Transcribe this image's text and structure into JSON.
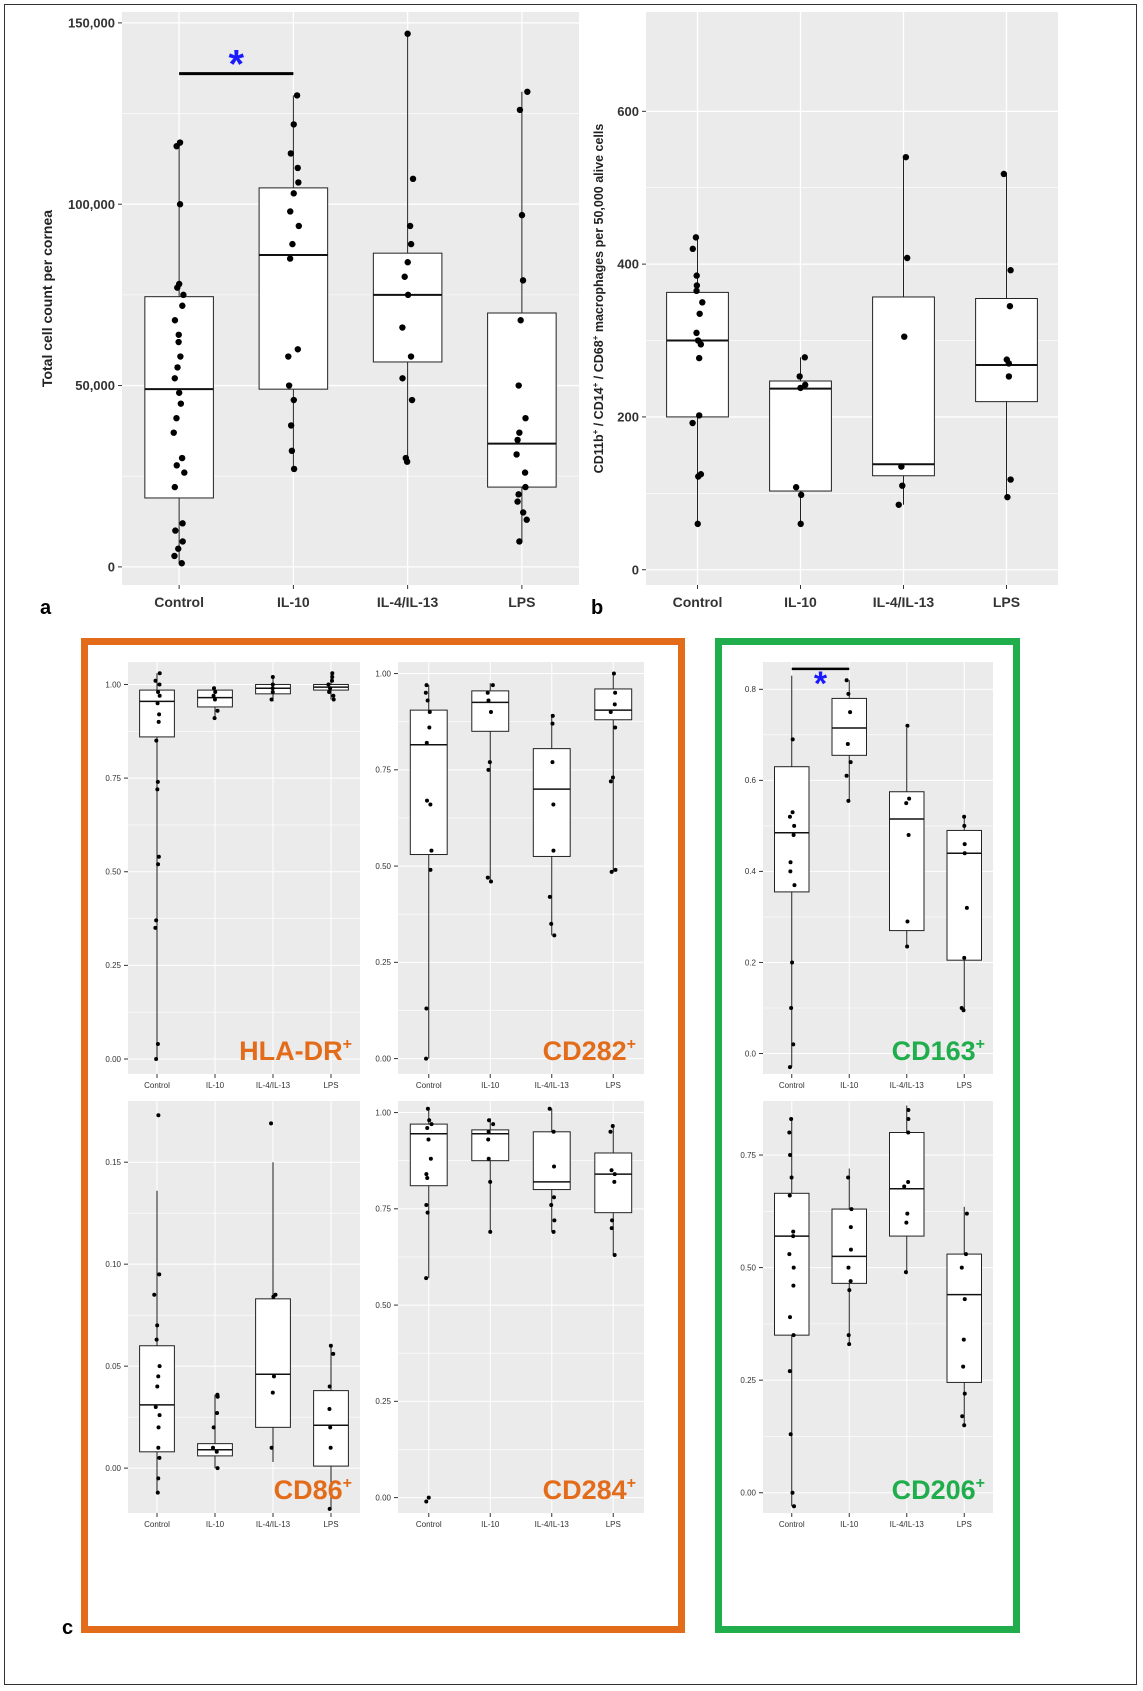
{
  "colors": {
    "panel_bg": "#ebebeb",
    "grid": "#ffffff",
    "orange": "#e36c1b",
    "green": "#1fae4b",
    "asterisk": "#1a1aff",
    "text": "#333333"
  },
  "panel_letters": {
    "a": "a",
    "b": "b",
    "c": "c"
  },
  "chart_data": [
    {
      "id": "a",
      "type": "box",
      "categories": [
        "Control",
        "IL-10",
        "IL-4/IL-13",
        "LPS"
      ],
      "ylabel": "Total cell count per cornea",
      "ylim": [
        -5000,
        153000
      ],
      "yticks": [
        0,
        50000,
        100000,
        150000
      ],
      "ytick_labels": [
        "0",
        "50,000",
        "100,000",
        "150,000"
      ],
      "boxes": [
        {
          "min": 1000,
          "q1": 19000,
          "median": 49000,
          "q3": 74500,
          "max": 117000
        },
        {
          "min": 27000,
          "q1": 49000,
          "median": 86000,
          "q3": 104500,
          "max": 130000
        },
        {
          "min": 29000,
          "q1": 56500,
          "median": 75000,
          "q3": 86500,
          "max": 147000
        },
        {
          "min": 7000,
          "q1": 22000,
          "median": 34000,
          "q3": 70000,
          "max": 131000
        }
      ],
      "points": [
        [
          1000,
          3000,
          5000,
          7000,
          10000,
          12000,
          22000,
          26000,
          28000,
          30000,
          37000,
          41000,
          45000,
          48000,
          52000,
          55000,
          58000,
          62000,
          64000,
          68000,
          72000,
          75000,
          77000,
          78000,
          100000,
          116000,
          117000
        ],
        [
          27000,
          32000,
          39000,
          46000,
          50000,
          58000,
          60000,
          85000,
          89000,
          94000,
          98000,
          103000,
          106000,
          110000,
          114000,
          122000,
          130000
        ],
        [
          29000,
          30000,
          46000,
          52000,
          58000,
          66000,
          75000,
          80000,
          84000,
          89000,
          94000,
          107000,
          147000
        ],
        [
          7000,
          13000,
          15000,
          18000,
          20000,
          22000,
          26000,
          31000,
          35000,
          37000,
          41000,
          50000,
          68000,
          79000,
          97000,
          126000,
          131000
        ]
      ],
      "significance": {
        "between": [
          0,
          1
        ],
        "y": 136000,
        "label": "*"
      }
    },
    {
      "id": "b",
      "type": "box",
      "categories": [
        "Control",
        "IL-10",
        "IL-4/IL-13",
        "LPS"
      ],
      "ylabel_parts": [
        "CD11b",
        "+",
        " / CD14",
        "+",
        " / CD68",
        "+",
        " macrophages per 50,000 alive cells"
      ],
      "ylim": [
        -20,
        730
      ],
      "yticks": [
        0,
        200,
        400,
        600
      ],
      "ytick_labels": [
        "0",
        "200",
        "400",
        "600"
      ],
      "boxes": [
        {
          "min": 60,
          "q1": 200,
          "median": 300,
          "q3": 363,
          "max": 435
        },
        {
          "min": 60,
          "q1": 103,
          "median": 237,
          "q3": 247,
          "max": 278
        },
        {
          "min": 85,
          "q1": 123,
          "median": 138,
          "q3": 357,
          "max": 540
        },
        {
          "min": 95,
          "q1": 220,
          "median": 268,
          "q3": 355,
          "max": 518
        }
      ],
      "points": [
        [
          60,
          122,
          125,
          192,
          202,
          277,
          295,
          300,
          310,
          335,
          350,
          365,
          372,
          385,
          420,
          435
        ],
        [
          60,
          98,
          108,
          238,
          242,
          253,
          278
        ],
        [
          85,
          110,
          135,
          305,
          408,
          540
        ],
        [
          95,
          118,
          253,
          270,
          275,
          345,
          392,
          518
        ]
      ]
    },
    {
      "id": "hla",
      "type": "box",
      "categories": [
        "Control",
        "IL-10",
        "IL-4/IL-13",
        "LPS"
      ],
      "label": "HLA-DR",
      "label_sup": "+",
      "label_color": "orange",
      "ylim": [
        -0.04,
        1.06
      ],
      "yticks": [
        0,
        0.25,
        0.5,
        0.75,
        1.0
      ],
      "ytick_labels": [
        "0.00",
        "0.25",
        "0.50",
        "0.75",
        "1.00"
      ],
      "boxes": [
        {
          "min": 0.0,
          "q1": 0.86,
          "median": 0.955,
          "q3": 0.985,
          "max": 1.03
        },
        {
          "min": 0.91,
          "q1": 0.94,
          "median": 0.965,
          "q3": 0.985,
          "max": 0.995
        },
        {
          "min": 0.955,
          "q1": 0.975,
          "median": 0.99,
          "q3": 1.0,
          "max": 1.02
        },
        {
          "min": 0.96,
          "q1": 0.985,
          "median": 0.993,
          "q3": 1.0,
          "max": 1.03
        }
      ],
      "points": [
        [
          0.0,
          0.04,
          0.35,
          0.37,
          0.52,
          0.54,
          0.72,
          0.74,
          0.85,
          0.9,
          0.92,
          0.95,
          0.97,
          0.98,
          1.0,
          1.01,
          1.03
        ],
        [
          0.91,
          0.93,
          0.96,
          0.97,
          0.98,
          0.99
        ],
        [
          0.96,
          0.98,
          0.99,
          1.0,
          1.02
        ],
        [
          0.96,
          0.97,
          0.98,
          0.99,
          1.0,
          1.01,
          1.02,
          1.03
        ]
      ]
    },
    {
      "id": "cd282",
      "type": "box",
      "categories": [
        "Control",
        "IL-10",
        "IL-4/IL-13",
        "LPS"
      ],
      "label": "CD282",
      "label_sup": "+",
      "label_color": "orange",
      "ylim": [
        -0.04,
        1.03
      ],
      "yticks": [
        0,
        0.25,
        0.5,
        0.75,
        1.0
      ],
      "ytick_labels": [
        "0.00",
        "0.25",
        "0.50",
        "0.75",
        "1.00"
      ],
      "boxes": [
        {
          "min": 0.0,
          "q1": 0.53,
          "median": 0.815,
          "q3": 0.905,
          "max": 0.97
        },
        {
          "min": 0.46,
          "q1": 0.85,
          "median": 0.925,
          "q3": 0.955,
          "max": 0.975
        },
        {
          "min": 0.32,
          "q1": 0.525,
          "median": 0.7,
          "q3": 0.805,
          "max": 0.895
        },
        {
          "min": 0.485,
          "q1": 0.88,
          "median": 0.905,
          "q3": 0.96,
          "max": 1.0
        }
      ],
      "points": [
        [
          0.0,
          0.13,
          0.49,
          0.54,
          0.66,
          0.67,
          0.82,
          0.86,
          0.9,
          0.93,
          0.95,
          0.97
        ],
        [
          0.46,
          0.47,
          0.75,
          0.77,
          0.9,
          0.93,
          0.95,
          0.97
        ],
        [
          0.32,
          0.35,
          0.42,
          0.54,
          0.66,
          0.77,
          0.87,
          0.89
        ],
        [
          0.485,
          0.49,
          0.72,
          0.73,
          0.86,
          0.9,
          0.92,
          0.95,
          1.0
        ]
      ]
    },
    {
      "id": "cd163",
      "type": "box",
      "categories": [
        "Control",
        "IL-10",
        "IL-4/IL-13",
        "LPS"
      ],
      "label": "CD163",
      "label_sup": "+",
      "label_color": "green",
      "ylim": [
        -0.045,
        0.86
      ],
      "yticks": [
        0,
        0.2,
        0.4,
        0.6,
        0.8
      ],
      "ytick_labels": [
        "0.0",
        "0.2",
        "0.4",
        "0.6",
        "0.8"
      ],
      "boxes": [
        {
          "min": -0.03,
          "q1": 0.355,
          "median": 0.485,
          "q3": 0.63,
          "max": 0.83
        },
        {
          "min": 0.555,
          "q1": 0.655,
          "median": 0.715,
          "q3": 0.78,
          "max": 0.82
        },
        {
          "min": 0.235,
          "q1": 0.27,
          "median": 0.515,
          "q3": 0.575,
          "max": 0.715
        },
        {
          "min": 0.095,
          "q1": 0.205,
          "median": 0.44,
          "q3": 0.49,
          "max": 0.52
        }
      ],
      "points": [
        [
          -0.03,
          0.02,
          0.1,
          0.2,
          0.37,
          0.4,
          0.42,
          0.48,
          0.5,
          0.52,
          0.53,
          0.69
        ],
        [
          0.555,
          0.61,
          0.64,
          0.68,
          0.75,
          0.79,
          0.82
        ],
        [
          0.235,
          0.29,
          0.48,
          0.55,
          0.56,
          0.72
        ],
        [
          0.095,
          0.1,
          0.21,
          0.32,
          0.44,
          0.46,
          0.5,
          0.52
        ]
      ],
      "significance": {
        "between": [
          0,
          1
        ],
        "y": 0.845,
        "label": "*"
      }
    },
    {
      "id": "cd86",
      "type": "box",
      "categories": [
        "Control",
        "IL-10",
        "IL-4/IL-13",
        "LPS"
      ],
      "label": "CD86",
      "label_sup": "+",
      "label_color": "orange",
      "ylim": [
        -0.022,
        0.18
      ],
      "yticks": [
        0,
        0.05,
        0.1,
        0.15
      ],
      "ytick_labels": [
        "0.00",
        "0.05",
        "0.10",
        "0.15"
      ],
      "boxes": [
        {
          "min": -0.012,
          "q1": 0.008,
          "median": 0.031,
          "q3": 0.06,
          "max": 0.136
        },
        {
          "min": 0.0,
          "q1": 0.006,
          "median": 0.009,
          "q3": 0.012,
          "max": 0.036
        },
        {
          "min": 0.003,
          "q1": 0.02,
          "median": 0.046,
          "q3": 0.083,
          "max": 0.15
        },
        {
          "min": -0.02,
          "q1": 0.001,
          "median": 0.021,
          "q3": 0.038,
          "max": 0.06
        }
      ],
      "points": [
        [
          -0.012,
          -0.005,
          0.005,
          0.01,
          0.02,
          0.026,
          0.03,
          0.04,
          0.045,
          0.05,
          0.063,
          0.07,
          0.085,
          0.095,
          0.173
        ],
        [
          0.0,
          0.008,
          0.01,
          0.02,
          0.027,
          0.035,
          0.036
        ],
        [
          0.01,
          0.037,
          0.045,
          0.084,
          0.085,
          0.169
        ],
        [
          -0.02,
          0.01,
          0.02,
          0.029,
          0.04,
          0.056,
          0.06
        ]
      ]
    },
    {
      "id": "cd284",
      "type": "box",
      "categories": [
        "Control",
        "IL-10",
        "IL-4/IL-13",
        "LPS"
      ],
      "label": "CD284",
      "label_sup": "+",
      "label_color": "orange",
      "ylim": [
        -0.04,
        1.03
      ],
      "yticks": [
        0,
        0.25,
        0.5,
        0.75,
        1.0
      ],
      "ytick_labels": [
        "0.00",
        "0.25",
        "0.50",
        "0.75",
        "1.00"
      ],
      "boxes": [
        {
          "min": 0.57,
          "q1": 0.81,
          "median": 0.945,
          "q3": 0.97,
          "max": 1.01
        },
        {
          "min": 0.69,
          "q1": 0.875,
          "median": 0.945,
          "q3": 0.955,
          "max": 0.985
        },
        {
          "min": 0.69,
          "q1": 0.8,
          "median": 0.82,
          "q3": 0.95,
          "max": 1.01
        },
        {
          "min": 0.63,
          "q1": 0.74,
          "median": 0.84,
          "q3": 0.895,
          "max": 0.965
        }
      ],
      "points": [
        [
          -0.01,
          0.0,
          0.57,
          0.74,
          0.76,
          0.83,
          0.84,
          0.88,
          0.93,
          0.96,
          0.97,
          0.98,
          1.01
        ],
        [
          0.69,
          0.82,
          0.88,
          0.93,
          0.95,
          0.97,
          0.98
        ],
        [
          0.69,
          0.72,
          0.76,
          0.78,
          0.86,
          0.95,
          1.01
        ],
        [
          0.63,
          0.7,
          0.72,
          0.82,
          0.84,
          0.85,
          0.95,
          0.965
        ]
      ]
    },
    {
      "id": "cd206",
      "type": "box",
      "categories": [
        "Control",
        "IL-10",
        "IL-4/IL-13",
        "LPS"
      ],
      "label": "CD206",
      "label_sup": "+",
      "label_color": "green",
      "ylim": [
        -0.045,
        0.87
      ],
      "yticks": [
        0,
        0.25,
        0.5,
        0.75
      ],
      "ytick_labels": [
        "0.00",
        "0.25",
        "0.50",
        "0.75"
      ],
      "boxes": [
        {
          "min": -0.03,
          "q1": 0.35,
          "median": 0.57,
          "q3": 0.665,
          "max": 0.83
        },
        {
          "min": 0.33,
          "q1": 0.465,
          "median": 0.525,
          "q3": 0.63,
          "max": 0.72
        },
        {
          "min": 0.485,
          "q1": 0.57,
          "median": 0.675,
          "q3": 0.8,
          "max": 0.86
        },
        {
          "min": 0.15,
          "q1": 0.245,
          "median": 0.44,
          "q3": 0.53,
          "max": 0.635
        }
      ],
      "points": [
        [
          -0.03,
          0.0,
          0.13,
          0.27,
          0.35,
          0.39,
          0.46,
          0.5,
          0.53,
          0.57,
          0.58,
          0.66,
          0.7,
          0.75,
          0.8,
          0.83
        ],
        [
          0.33,
          0.35,
          0.45,
          0.47,
          0.5,
          0.54,
          0.59,
          0.63,
          0.7
        ],
        [
          0.49,
          0.6,
          0.62,
          0.68,
          0.69,
          0.8,
          0.83,
          0.85
        ],
        [
          0.15,
          0.17,
          0.22,
          0.28,
          0.34,
          0.43,
          0.5,
          0.53,
          0.62
        ]
      ]
    }
  ]
}
